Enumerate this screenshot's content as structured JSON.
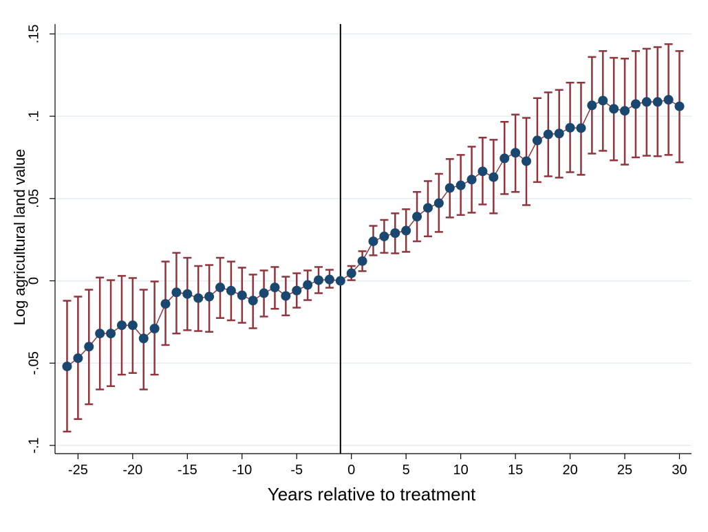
{
  "chart_data": {
    "type": "errorbar",
    "xlabel": "Years relative to treatment",
    "ylabel": "Log agricultural land value",
    "x": [
      -26,
      -25,
      -24,
      -23,
      -22,
      -21,
      -20,
      -19,
      -18,
      -17,
      -16,
      -15,
      -14,
      -13,
      -12,
      -11,
      -10,
      -9,
      -8,
      -7,
      -6,
      -5,
      -4,
      -3,
      -2,
      -1,
      0,
      1,
      2,
      3,
      4,
      5,
      6,
      7,
      8,
      9,
      10,
      11,
      12,
      13,
      14,
      15,
      16,
      17,
      18,
      19,
      20,
      21,
      22,
      23,
      24,
      25,
      26,
      27,
      28,
      29,
      30
    ],
    "series": [
      {
        "values": [
          -0.052,
          -0.047,
          -0.04,
          -0.032,
          -0.032,
          -0.027,
          -0.027,
          -0.035,
          -0.029,
          -0.014,
          -0.007,
          -0.008,
          -0.0105,
          -0.0096,
          -0.004,
          -0.006,
          -0.0088,
          -0.012,
          -0.0075,
          -0.004,
          -0.0092,
          -0.0059,
          -0.0025,
          0.0004,
          0.0008,
          0,
          0.0046,
          0.012,
          0.024,
          0.027,
          0.029,
          0.0305,
          0.039,
          0.0443,
          0.0472,
          0.0564,
          0.058,
          0.0615,
          0.0665,
          0.063,
          0.0744,
          0.0778,
          0.0727,
          0.0853,
          0.089,
          0.0895,
          0.093,
          0.0928,
          0.1066,
          0.1095,
          0.1045,
          0.1033,
          0.1074,
          0.1087,
          0.1087,
          0.11,
          0.106
        ],
        "lower": [
          -0.0916,
          -0.084,
          -0.075,
          -0.066,
          -0.064,
          -0.057,
          -0.056,
          -0.066,
          -0.057,
          -0.039,
          -0.032,
          -0.03,
          -0.0305,
          -0.031,
          -0.0226,
          -0.024,
          -0.0255,
          -0.0288,
          -0.0217,
          -0.017,
          -0.021,
          -0.0163,
          -0.0117,
          -0.0075,
          -0.0042,
          null,
          0.0004,
          0.0059,
          0.0155,
          0.017,
          0.0167,
          0.0176,
          0.024,
          0.027,
          0.0297,
          0.0385,
          0.04,
          0.0414,
          0.0464,
          0.041,
          0.0527,
          0.054,
          0.046,
          0.06,
          0.0635,
          0.0627,
          0.066,
          0.0644,
          0.0773,
          0.079,
          0.0732,
          0.0706,
          0.075,
          0.076,
          0.0757,
          0.0765,
          0.072
        ],
        "upper": [
          -0.0121,
          -0.0096,
          -0.0054,
          0.002,
          0.0004,
          0.003,
          0.0017,
          -0.0054,
          -0.0004,
          0.0117,
          0.017,
          0.014,
          0.009,
          0.0096,
          0.014,
          0.0117,
          0.008,
          0.0038,
          0.0063,
          0.0084,
          0.0025,
          0.0046,
          0.0063,
          0.0084,
          0.0067,
          null,
          0.009,
          0.018,
          0.0334,
          0.037,
          0.041,
          0.0435,
          0.054,
          0.0606,
          0.065,
          0.074,
          0.0765,
          0.0815,
          0.087,
          0.0857,
          0.0966,
          0.101,
          0.099,
          0.111,
          0.1145,
          0.116,
          0.1204,
          0.1204,
          0.136,
          0.1396,
          0.1355,
          0.135,
          0.1396,
          0.141,
          0.142,
          0.1438,
          0.1396
        ],
        "color": "#1a476f",
        "error_color": "#90353b"
      }
    ],
    "vline": -1,
    "xlim": [
      -27.1,
      31.1
    ],
    "ylim": [
      -0.105,
      0.156
    ],
    "xticks": [
      -25,
      -20,
      -15,
      -10,
      -5,
      0,
      5,
      10,
      15,
      20,
      25,
      30
    ],
    "yticks": [
      {
        "value": -0.1,
        "label": "-.1"
      },
      {
        "value": -0.05,
        "label": "-.05"
      },
      0,
      {
        "value": 0.05,
        "label": ".05"
      },
      {
        "value": 0.1,
        "label": ".1"
      },
      {
        "value": 0.15,
        "label": ".15"
      }
    ],
    "grid": true
  }
}
